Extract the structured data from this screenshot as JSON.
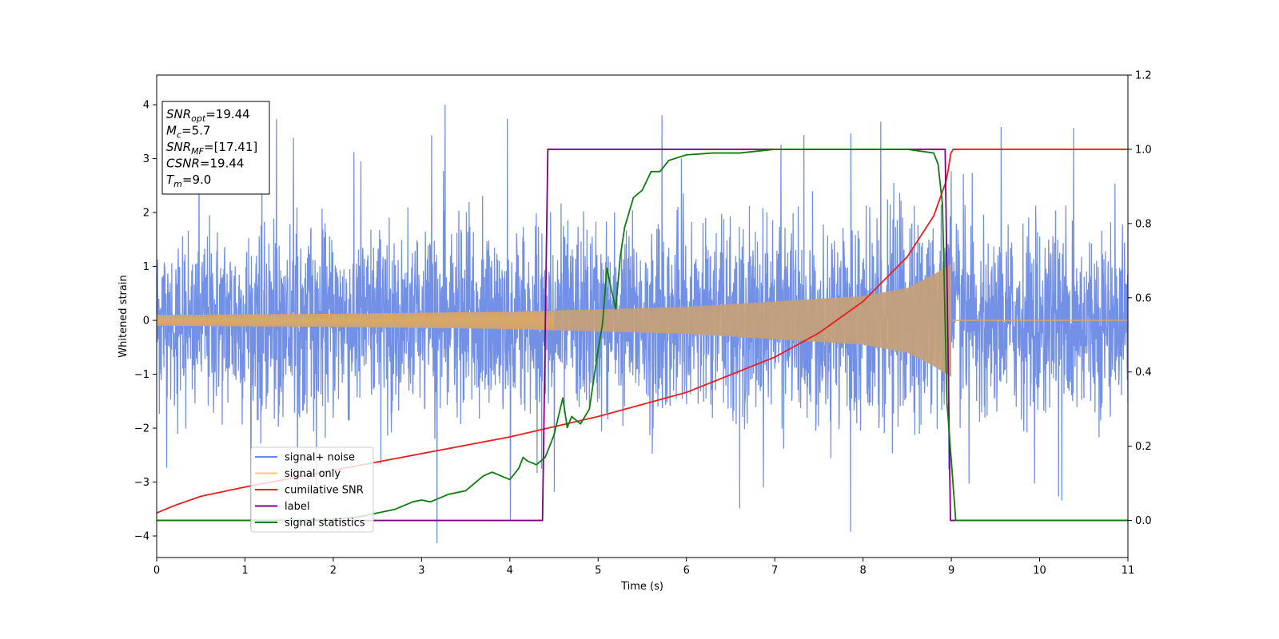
{
  "chart_data": {
    "type": "line",
    "xlabel": "Time (s)",
    "ylabel": "Whitened strain",
    "xlim": [
      0,
      11
    ],
    "ylim": [
      -4.4,
      4.55
    ],
    "ylim_right": [
      -0.1,
      1.2
    ],
    "x_ticks": [
      0,
      1,
      2,
      3,
      4,
      5,
      6,
      7,
      8,
      9,
      10,
      11
    ],
    "y_ticks": [
      -4,
      -3,
      -2,
      -1,
      0,
      1,
      2,
      3,
      4
    ],
    "y_ticks_labels": [
      "−4",
      "−3",
      "−2",
      "−1",
      "0",
      "1",
      "2",
      "3",
      "4"
    ],
    "y2_ticks": [
      0.0,
      0.2,
      0.4,
      0.6,
      0.8,
      1.0,
      1.2
    ],
    "y2_ticks_labels": [
      "0.0",
      "0.2",
      "0.4",
      "0.6",
      "0.8",
      "1.0",
      "1.2"
    ],
    "grid": false,
    "legend_position": "lower-left",
    "series": [
      {
        "name": "signal+ noise",
        "color": "#6b8ae6",
        "axis": "left",
        "kind": "noise",
        "amplitude_std": 0.85,
        "signal_envelope": {
          "x": [
            0,
            2,
            4,
            6,
            8,
            8.5,
            8.8,
            9.0
          ],
          "y": [
            0.1,
            0.12,
            0.16,
            0.25,
            0.45,
            0.6,
            0.85,
            1.05
          ]
        }
      },
      {
        "name": "signal only",
        "color": "#f5c87a",
        "axis": "left",
        "kind": "envelope",
        "envelope": {
          "x": [
            0,
            2,
            4,
            6,
            8,
            8.5,
            8.8,
            9.0
          ],
          "y": [
            0.1,
            0.12,
            0.16,
            0.25,
            0.45,
            0.6,
            0.85,
            1.05
          ]
        },
        "end": 9.0
      },
      {
        "name": "cumilative SNR",
        "color": "#ee1c1c",
        "axis": "right",
        "x": [
          0,
          0.2,
          0.5,
          1,
          2,
          3,
          4,
          5,
          6,
          7,
          7.5,
          8,
          8.5,
          8.8,
          8.95,
          9.0,
          11
        ],
        "y": [
          0.02,
          0.04,
          0.065,
          0.09,
          0.135,
          0.18,
          0.225,
          0.28,
          0.345,
          0.44,
          0.505,
          0.59,
          0.71,
          0.82,
          0.92,
          1.0,
          1.0
        ]
      },
      {
        "name": "label",
        "color": "#800080",
        "axis": "right",
        "x": [
          0,
          4.37,
          4.43,
          8.93,
          8.99,
          11
        ],
        "y": [
          0,
          0,
          1,
          1,
          0,
          0
        ]
      },
      {
        "name": "signal statistics",
        "color": "#0e7d0e",
        "axis": "right",
        "x": [
          0,
          0.5,
          1,
          1.5,
          2,
          2.3,
          2.5,
          2.7,
          2.8,
          2.9,
          3.0,
          3.1,
          3.2,
          3.3,
          3.4,
          3.5,
          3.6,
          3.7,
          3.8,
          3.9,
          4.0,
          4.1,
          4.15,
          4.2,
          4.3,
          4.4,
          4.5,
          4.6,
          4.65,
          4.7,
          4.8,
          4.9,
          5.0,
          5.05,
          5.1,
          5.15,
          5.2,
          5.25,
          5.3,
          5.4,
          5.5,
          5.6,
          5.7,
          5.8,
          6.0,
          6.3,
          6.6,
          7.0,
          7.5,
          8.0,
          8.5,
          8.8,
          8.85,
          8.9,
          8.95,
          9.05,
          11
        ],
        "y": [
          0.0,
          0.0,
          0.0,
          0.0,
          0.003,
          0.01,
          0.02,
          0.03,
          0.04,
          0.05,
          0.055,
          0.05,
          0.06,
          0.07,
          0.075,
          0.08,
          0.1,
          0.12,
          0.13,
          0.12,
          0.11,
          0.14,
          0.17,
          0.16,
          0.15,
          0.17,
          0.23,
          0.33,
          0.25,
          0.28,
          0.26,
          0.3,
          0.46,
          0.53,
          0.68,
          0.62,
          0.57,
          0.71,
          0.79,
          0.87,
          0.89,
          0.94,
          0.94,
          0.97,
          0.985,
          0.99,
          0.99,
          1.0,
          1.0,
          1.0,
          1.0,
          0.99,
          0.96,
          0.85,
          0.32,
          0.0,
          0.0
        ]
      }
    ],
    "annotation_box": {
      "lines": [
        {
          "base": "SNR",
          "sub": "opt",
          "value": "=19.44"
        },
        {
          "base": "M",
          "sub": "c",
          "value": "=5.7"
        },
        {
          "base": "SNR",
          "sub": "MF",
          "value": "=[17.41]"
        },
        {
          "base": "CSNR",
          "sub": "",
          "value": "=19.44"
        },
        {
          "base": "T",
          "sub": "m",
          "value": "=9.0"
        }
      ]
    }
  }
}
